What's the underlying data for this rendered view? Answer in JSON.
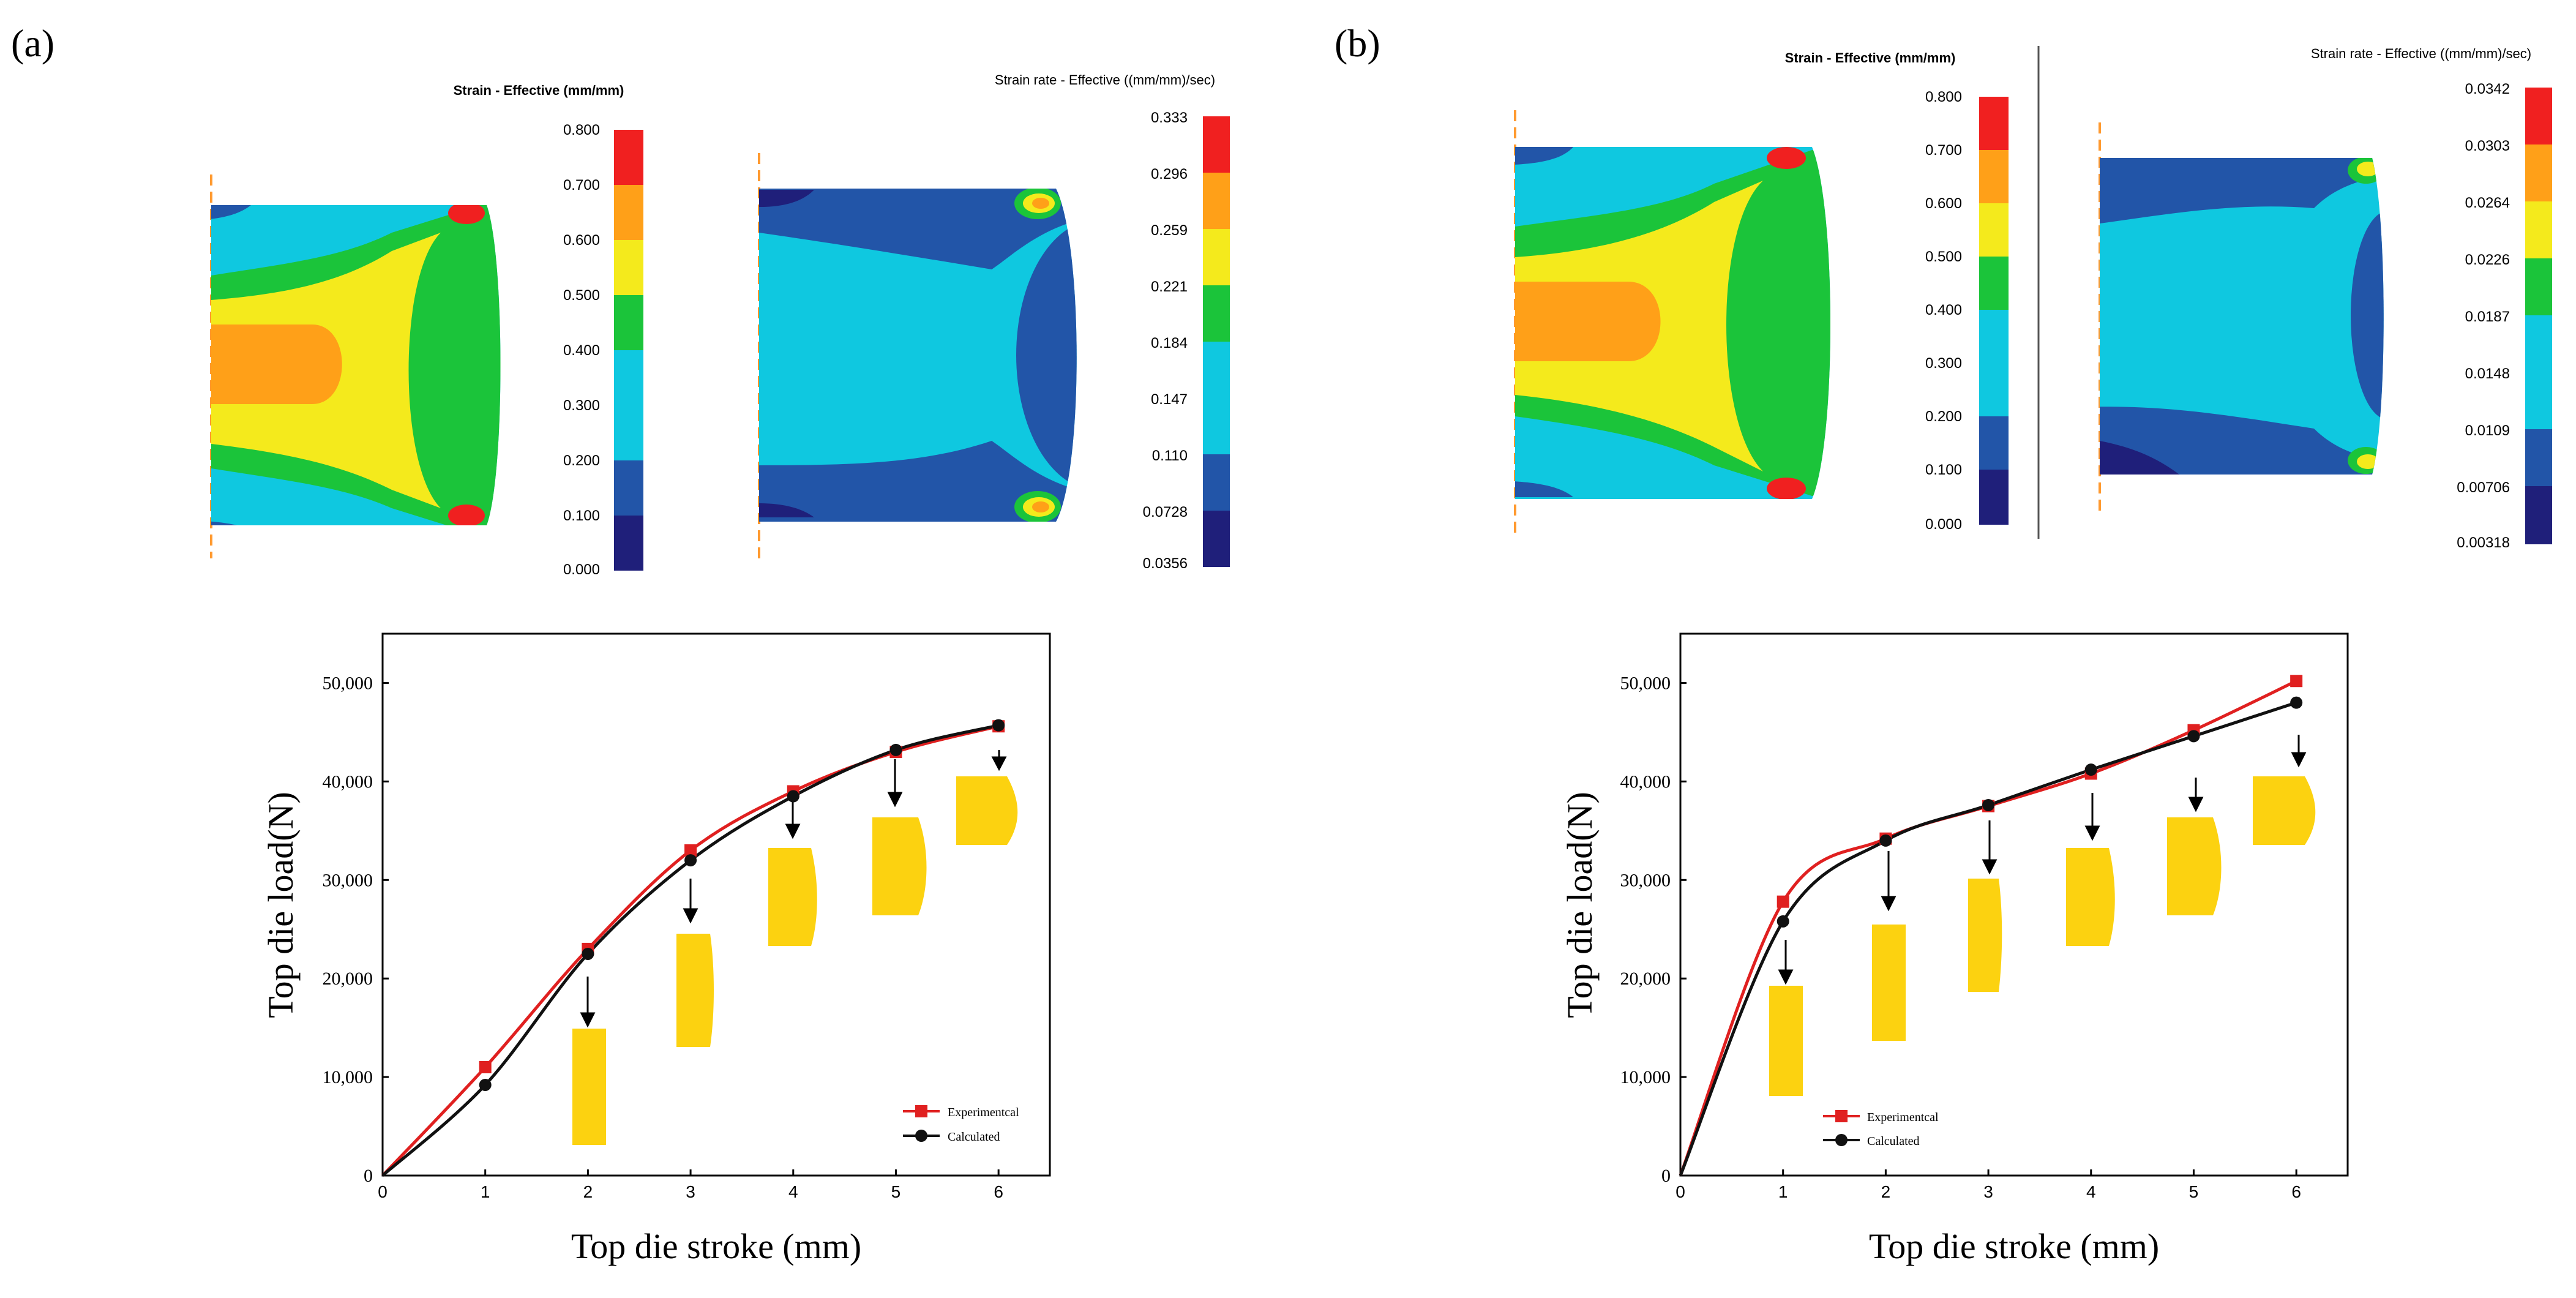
{
  "panels": [
    {
      "label": "(a)",
      "strain_legend": {
        "title": "Strain - Effective (mm/mm)",
        "ticks": [
          "0.800",
          "0.700",
          "0.600",
          "0.500",
          "0.400",
          "0.300",
          "0.200",
          "0.100",
          "0.000"
        ]
      },
      "rate_legend": {
        "title": "Strain rate - Effective ((mm/mm)/sec)",
        "ticks": [
          "0.333",
          "0.296",
          "0.259",
          "0.221",
          "0.184",
          "0.147",
          "0.110",
          "0.0728",
          "0.0356"
        ]
      }
    },
    {
      "label": "(b)",
      "strain_legend": {
        "title": "Strain - Effective (mm/mm)",
        "ticks": [
          "0.800",
          "0.700",
          "0.600",
          "0.500",
          "0.400",
          "0.300",
          "0.200",
          "0.100",
          "0.000"
        ]
      },
      "rate_legend": {
        "title": "Strain rate - Effective ((mm/mm)/sec)",
        "ticks": [
          "0.0342",
          "0.0303",
          "0.0264",
          "0.0226",
          "0.0187",
          "0.0148",
          "0.0109",
          "0.00706",
          "0.00318"
        ]
      }
    }
  ],
  "contour_colors": [
    "#1f1f7a",
    "#2255a8",
    "#0fc8e0",
    "#1bc43a",
    "#f4ea1c",
    "#ffa018",
    "#f02020"
  ],
  "chart_data": [
    {
      "type": "line",
      "xlabel": "Top die stroke (mm)",
      "ylabel": "Top die load(N)",
      "xlim": [
        0,
        6.5
      ],
      "ylim": [
        0,
        55000
      ],
      "xticks": [
        "0",
        "1",
        "2",
        "3",
        "4",
        "5",
        "6"
      ],
      "yticks": [
        "0",
        "10,000",
        "20,000",
        "30,000",
        "40,000",
        "50,000"
      ],
      "legend": "bottom-right",
      "series": [
        {
          "name": "Experimentcal",
          "color": "#e02020",
          "marker": "square",
          "x": [
            0,
            1,
            2,
            3,
            4,
            5,
            6
          ],
          "y": [
            0,
            11000,
            23000,
            33000,
            39000,
            43000,
            45600
          ]
        },
        {
          "name": "Calculated",
          "color": "#111111",
          "marker": "circle",
          "x": [
            0,
            1,
            2,
            3,
            4,
            5,
            6
          ],
          "y": [
            0,
            9200,
            22500,
            32000,
            38500,
            43200,
            45700
          ]
        }
      ]
    },
    {
      "type": "line",
      "xlabel": "Top die stroke (mm)",
      "ylabel": "Top die load(N)",
      "xlim": [
        0,
        6.5
      ],
      "ylim": [
        0,
        55000
      ],
      "xticks": [
        "0",
        "1",
        "2",
        "3",
        "4",
        "5",
        "6"
      ],
      "yticks": [
        "0",
        "10,000",
        "20,000",
        "30,000",
        "40,000",
        "50,000"
      ],
      "legend": "bottom-right",
      "series": [
        {
          "name": "Experimentcal",
          "color": "#e02020",
          "marker": "square",
          "x": [
            0,
            1,
            2,
            3,
            4,
            5,
            6
          ],
          "y": [
            0,
            27800,
            34200,
            37500,
            40800,
            45200,
            50200
          ]
        },
        {
          "name": "Calculated",
          "color": "#111111",
          "marker": "circle",
          "x": [
            0,
            1,
            2,
            3,
            4,
            5,
            6
          ],
          "y": [
            0,
            25800,
            34000,
            37600,
            41200,
            44600,
            48000
          ]
        }
      ]
    }
  ]
}
